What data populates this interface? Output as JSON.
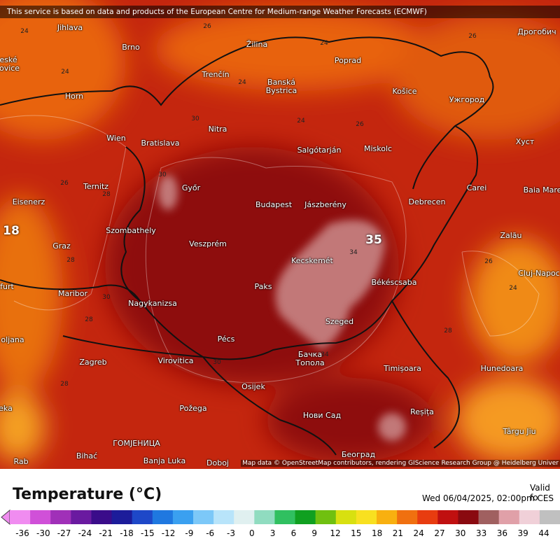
{
  "banner": "This service is based on data and products of the European Centre for Medium-range Weather Forecasts (ECMWF)",
  "map": {
    "cities": [
      "Jihlava",
      "Brno",
      "Žilina",
      "Poprad",
      "Дрогобич",
      "Trenčín",
      "Banská Bystrica",
      "Košice",
      "Ужгород",
      "Horn",
      "Wien",
      "Bratislava",
      "Nitra",
      "Хуст",
      "Salgótarján",
      "Miskolc",
      "Ternitz",
      "Győr",
      "Carei",
      "Baia Mare",
      "Eisenerz",
      "Budapest",
      "Jászberény",
      "Debrecen",
      "Szombathely",
      "Zalău",
      "Graz",
      "Veszprém",
      "Kecskemét",
      "Cluj-Napoc",
      "Maribor",
      "Paks",
      "Békéscsaba",
      "Nagykanizsa",
      "Szeged",
      "Pécs",
      "oljana",
      "Бачка Топола",
      "Timișoara",
      "Hunedoara",
      "Zagreb",
      "Virovitica",
      "Osijek",
      "Požega",
      "Нови Сад",
      "Reșița",
      "Târgu Jiu",
      "ГОМЈЕНИЦА",
      "Bihać",
      "Banja Luka",
      "Doboj",
      "Београд",
      "eské jovice",
      "furt",
      "eka",
      "Rab"
    ],
    "contour_labels": [
      24,
      26,
      24,
      26,
      24,
      24,
      26,
      30,
      24,
      26,
      28,
      30,
      28,
      30,
      28,
      34,
      30,
      34,
      24,
      28,
      26,
      28
    ],
    "big_labels": [
      35,
      18
    ],
    "attribution": "Map data © OpenStreetMap contributors, rendering GIScience Research Group @ Heidelberg Univer"
  },
  "legend": {
    "title": "Temperature (°C)",
    "valid_label": "Valid fo",
    "valid_time": "Wed 06/04/2025, 02:00pm CES",
    "ticks": [
      -36,
      -30,
      -27,
      -24,
      -21,
      -18,
      -15,
      -12,
      -9,
      -6,
      -3,
      0,
      3,
      6,
      9,
      12,
      15,
      18,
      21,
      24,
      27,
      30,
      33,
      36,
      39,
      44
    ],
    "colors": [
      "#f08cf0",
      "#d050d8",
      "#a030b8",
      "#6a1aa0",
      "#3a0c8a",
      "#1c1c9a",
      "#1e48c8",
      "#1f78e0",
      "#3aa0f0",
      "#7cc8f8",
      "#b8e4fa",
      "#e0f0f0",
      "#90dcc0",
      "#30c060",
      "#10a020",
      "#70c010",
      "#d8e010",
      "#f8e020",
      "#f8b010",
      "#f07010",
      "#e83c10",
      "#c01010",
      "#8a0a10",
      "#a06060",
      "#e0a0a8",
      "#f0d0d8",
      "#c0c0c0"
    ]
  }
}
